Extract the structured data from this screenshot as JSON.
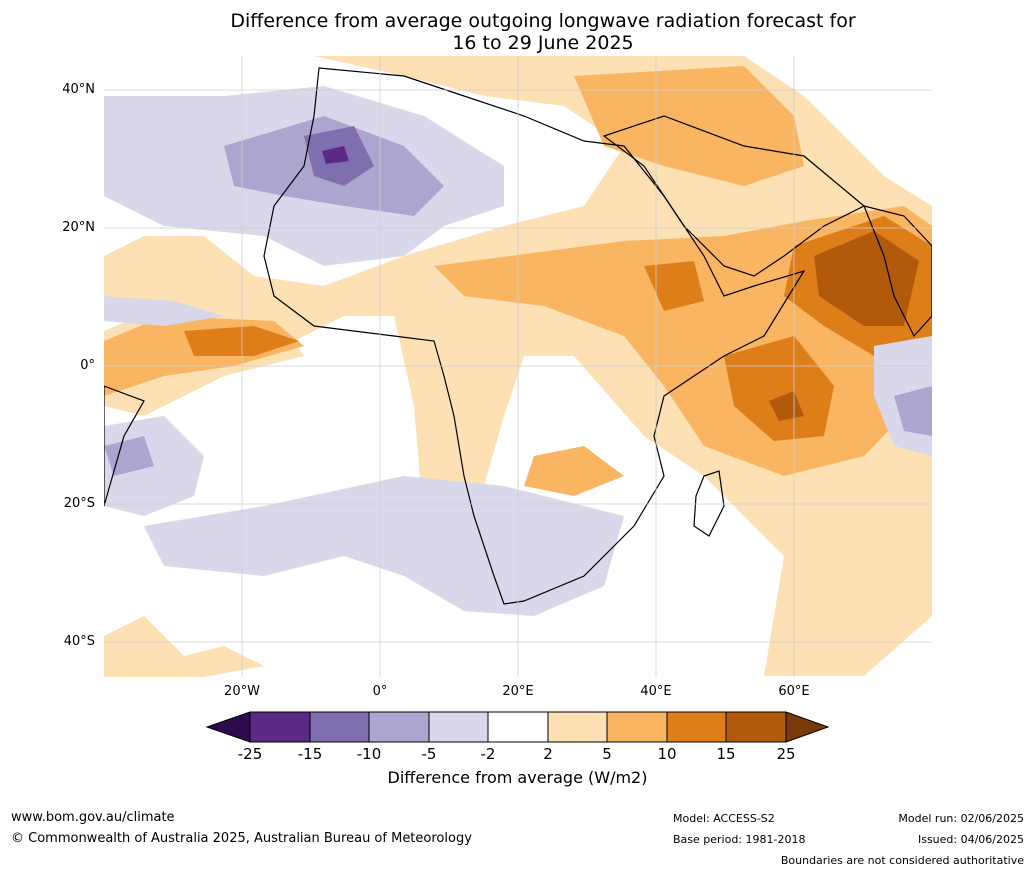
{
  "title": {
    "line1": "Difference from average outgoing longwave radiation forecast for",
    "line2": "16 to 29 June 2025"
  },
  "map": {
    "lat_labels": [
      "40°N",
      "20°N",
      "0°",
      "20°S",
      "40°S"
    ],
    "lon_labels": [
      "20°W",
      "0°",
      "20°E",
      "40°E",
      "60°E"
    ],
    "colors": {
      "ocean_land": "#ffffff",
      "neg25": "#2d0a4e",
      "neg15": "#5a2a86",
      "neg10": "#7f6fae",
      "neg5": "#aca5d0",
      "neg2": "#d8d8ea",
      "pos2": "#fde0b4",
      "pos5": "#f9b562",
      "pos10": "#de7e19",
      "pos15": "#b25a0c",
      "pos25": "#7a3906",
      "coast": "#000000",
      "border": "#808080",
      "grid": "#cfcfcf"
    }
  },
  "colorbar": {
    "ticks": [
      "-25",
      "-15",
      "-10",
      "-5",
      "-2",
      "2",
      "5",
      "10",
      "15",
      "25"
    ],
    "label": "Difference from average (W/m2)"
  },
  "footer": {
    "url": "www.bom.gov.au/climate",
    "copyright": "© Commonwealth of Australia 2025, Australian Bureau of Meteorology",
    "model": "Model: ACCESS-S2",
    "base_period": "Base period: 1981-2018",
    "model_run": "Model run: 02/06/2025",
    "issued": "Issued: 04/06/2025",
    "boundaries_note": "Boundaries are not considered authoritative"
  }
}
